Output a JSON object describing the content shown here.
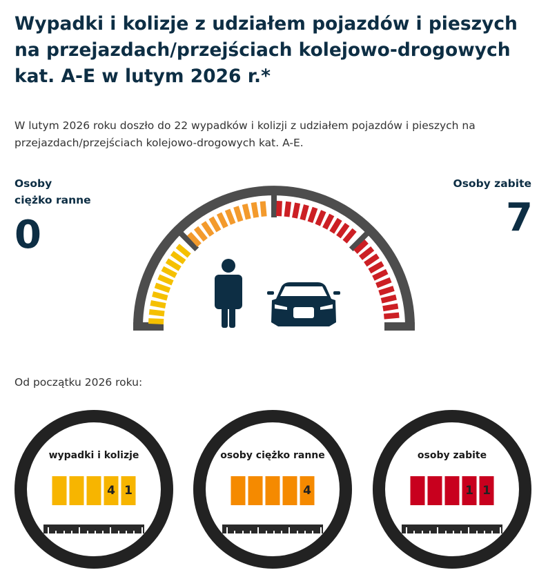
{
  "header": {
    "title": "Wypadki i kolizje z udziałem pojazdów i pieszych na przejazdach/przejściach kolejowo-drogowych kat. A-E w lutym 2026 r.*"
  },
  "intro": "W lutym 2026 roku doszło do 22 wypadków i kolizji z udziałem pojazdów i pieszych na przejazdach/przejściach kolejowo-drogowych kat. A-E.",
  "stats": {
    "injured": {
      "label_line1": "Osoby",
      "label_line2": "ciężko ranne",
      "value": "0"
    },
    "killed": {
      "label": "Osoby zabite",
      "value": "7"
    }
  },
  "gauge": {
    "colors": {
      "frame": "#4d4d4d",
      "yellow": "#f5c000",
      "orange": "#f39a2c",
      "red": "#cc1f24",
      "icons": "#0d2e44"
    },
    "icons": [
      "person-icon",
      "car-icon"
    ]
  },
  "since_label": "Od początku 2026 roku:",
  "counters": [
    {
      "title": "wypadki i kolizje",
      "digits": [
        "",
        "",
        "",
        "4",
        "1"
      ],
      "color": "#f7b500"
    },
    {
      "title": "osoby ciężko ranne",
      "digits": [
        "",
        "",
        "",
        "",
        "4"
      ],
      "color": "#f58a00"
    },
    {
      "title": "osoby zabite",
      "digits": [
        "",
        "",
        "",
        "1",
        "1"
      ],
      "color": "#c8001e"
    }
  ]
}
